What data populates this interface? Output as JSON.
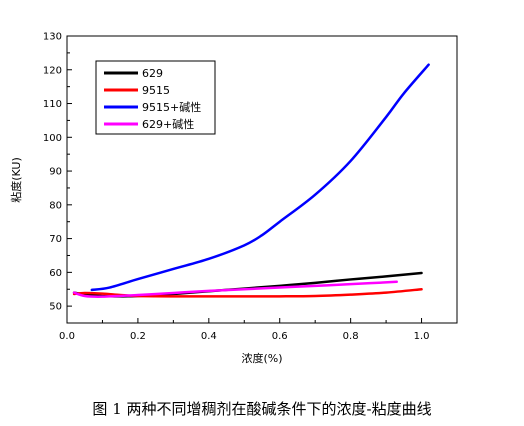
{
  "chart_data": {
    "type": "line",
    "xlabel": "浓度(%)",
    "ylabel": "粘度(KU)",
    "xlim": [
      0,
      1.1
    ],
    "ylim": [
      45,
      130
    ],
    "xticks": [
      0.0,
      0.2,
      0.4,
      0.6,
      0.8,
      1.0
    ],
    "xtick_labels": [
      "0.0",
      "0.2",
      "0.4",
      "0.6",
      "0.8",
      "1.0"
    ],
    "yticks": [
      50,
      60,
      70,
      80,
      90,
      100,
      110,
      120,
      130
    ],
    "ytick_labels": [
      "50",
      "60",
      "70",
      "80",
      "90",
      "100",
      "110",
      "120",
      "130"
    ],
    "grid": false,
    "legend": "top-left",
    "series": [
      {
        "name": "629",
        "color": "#000000",
        "x": [
          0.02,
          0.05,
          0.1,
          0.15,
          0.2,
          0.3,
          0.4,
          0.5,
          0.6,
          0.7,
          0.8,
          0.9,
          1.0
        ],
        "y": [
          54.0,
          53.5,
          53.0,
          52.9,
          53.0,
          53.6,
          54.4,
          55.2,
          56.0,
          56.9,
          57.9,
          58.8,
          59.8
        ]
      },
      {
        "name": "9515",
        "color": "#ff0000",
        "x": [
          0.02,
          0.05,
          0.1,
          0.15,
          0.2,
          0.3,
          0.4,
          0.5,
          0.6,
          0.7,
          0.8,
          0.9,
          1.0
        ],
        "y": [
          53.6,
          53.9,
          53.7,
          53.3,
          53.0,
          52.9,
          52.9,
          52.9,
          52.9,
          53.0,
          53.4,
          54.0,
          55.0
        ]
      },
      {
        "name": "9515+碱性",
        "color": "#0000ff",
        "x": [
          0.07,
          0.12,
          0.2,
          0.3,
          0.4,
          0.5,
          0.55,
          0.6,
          0.7,
          0.8,
          0.9,
          0.95,
          1.02
        ],
        "y": [
          54.8,
          55.5,
          58.0,
          61.0,
          64.0,
          68.0,
          71.0,
          75.0,
          83.0,
          93.0,
          106.0,
          113.0,
          121.5
        ]
      },
      {
        "name": "629+碱性",
        "color": "#ff00ff",
        "x": [
          0.02,
          0.05,
          0.1,
          0.2,
          0.3,
          0.4,
          0.5,
          0.6,
          0.7,
          0.8,
          0.93
        ],
        "y": [
          54.0,
          53.0,
          52.8,
          53.3,
          53.9,
          54.5,
          55.0,
          55.5,
          56.0,
          56.5,
          57.2
        ]
      }
    ]
  },
  "caption": "图 1  两种不同增稠剂在酸碱条件下的浓度-粘度曲线"
}
